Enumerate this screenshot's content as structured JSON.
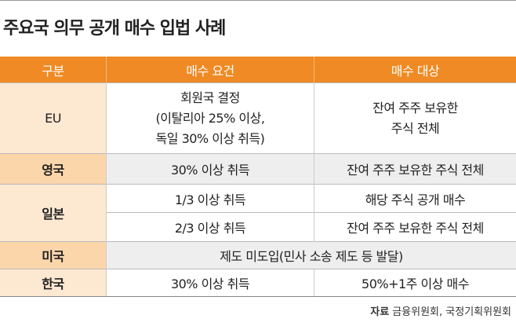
{
  "title": "주요국 의무 공개 매수 입법 사례",
  "table": {
    "header": [
      "구분",
      "매수 요건",
      "매수 대상"
    ],
    "rows": [
      {
        "label": "EU",
        "cells": [
          [
            "회원국 결정",
            "(이탈리아 25% 이상,",
            "독일 30% 이상 취득)"
          ],
          [
            "잔여 주주 보유한",
            "주식 전체"
          ]
        ]
      },
      {
        "label": "영국",
        "cells": [
          "30% 이상 취득",
          "잔여 주주 보유한 주식 전체"
        ]
      },
      {
        "label": "일본",
        "subrows": [
          [
            "1/3 이상 취득",
            "해당 주식 공개 매수"
          ],
          [
            "2/3 이상 취득",
            "잔여 주주 보유한 주식 전체"
          ]
        ]
      },
      {
        "label": "미국",
        "cells": [
          "제도 미도입(민사 소송 제도 등 발달)"
        ]
      },
      {
        "label": "한국",
        "cells": [
          "30% 이상 취득",
          "50%+1주 이상 매수"
        ]
      }
    ]
  },
  "source": {
    "label": "자료",
    "text": "금융위원회, 국정기획위원회"
  }
}
